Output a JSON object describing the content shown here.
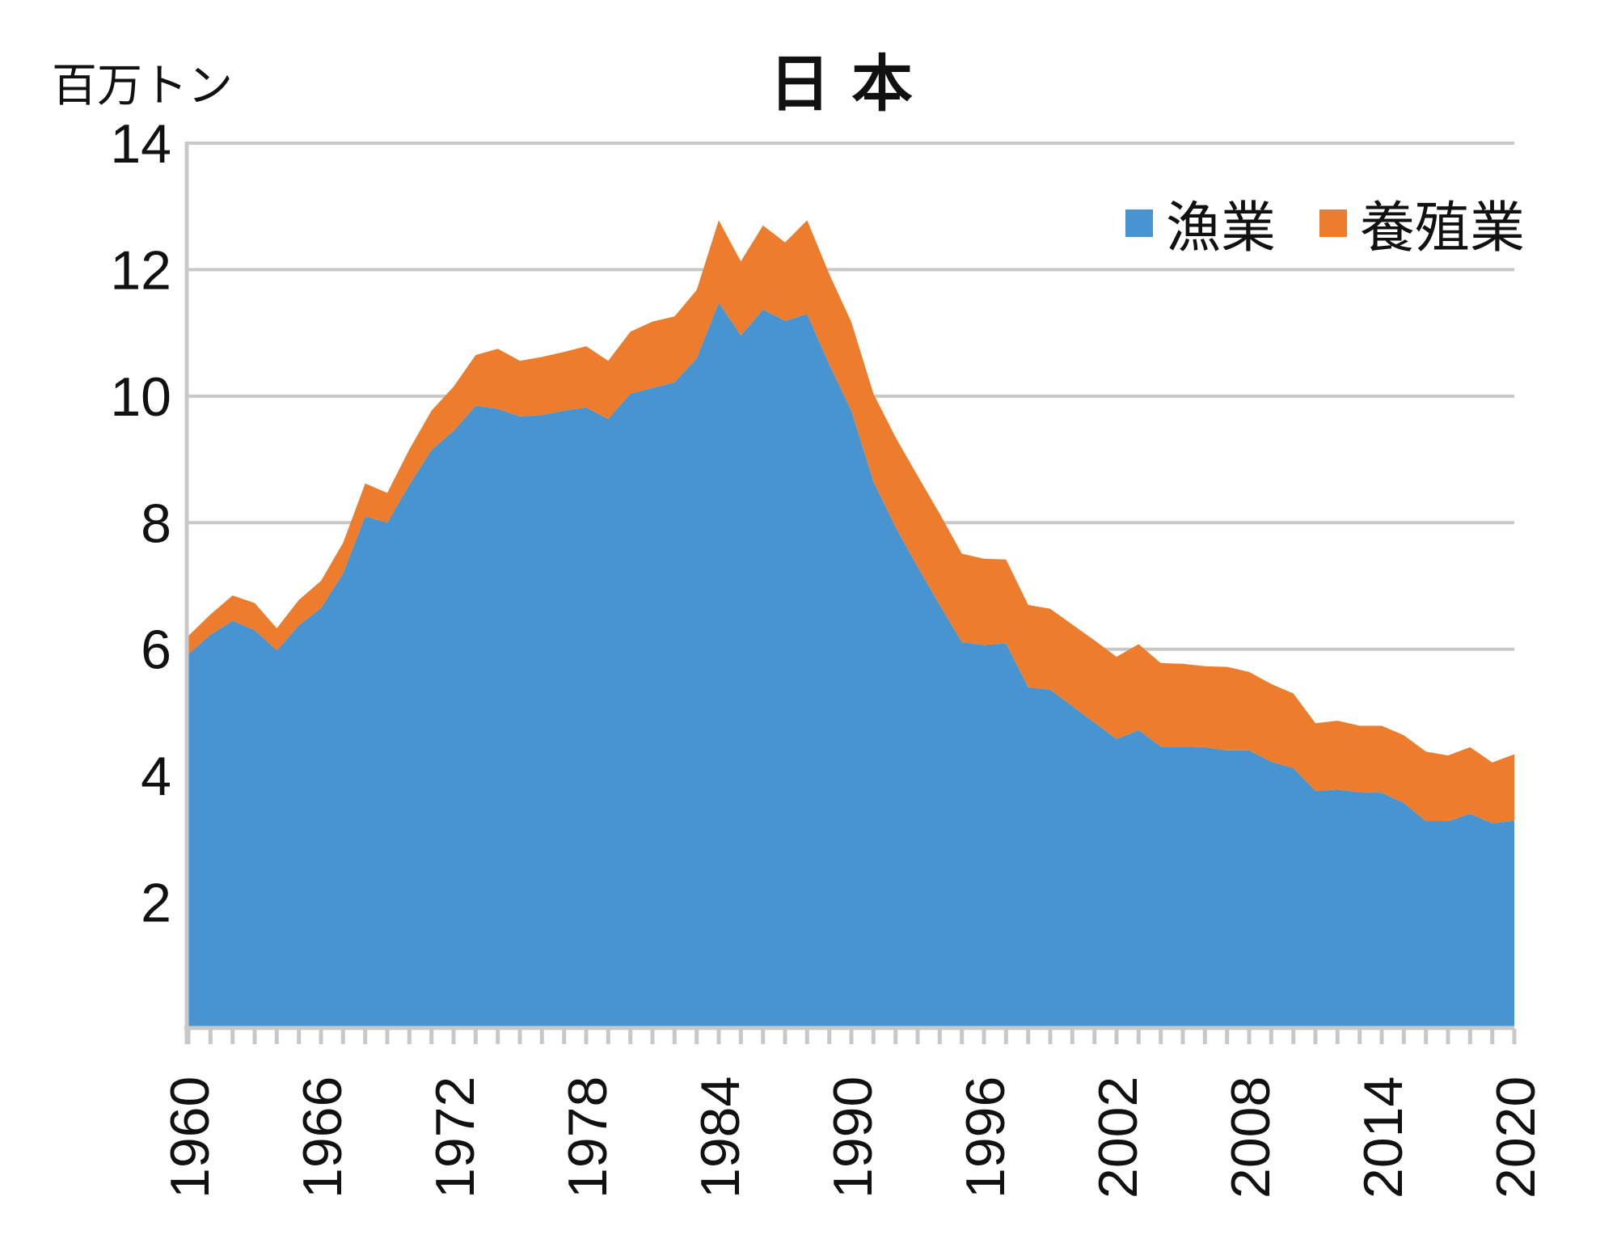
{
  "title": "日本",
  "unit_label": "百万トン",
  "legend_items": [
    {
      "label": "漁業",
      "color": "#4794D1"
    },
    {
      "label": "養殖業",
      "color": "#ED7D2C"
    }
  ],
  "colors": {
    "fishery_blue": "#4794D1",
    "aquaculture_orange": "#ED7D2C",
    "gridline_gray": "#C8C8C8",
    "text_black": "#111111",
    "background": "#FFFFFF"
  },
  "chart_data": {
    "type": "area",
    "stacked": true,
    "title": "日本",
    "ylabel": "百万トン",
    "xlabel": "",
    "ylim": [
      0,
      14
    ],
    "grid": true,
    "legend_position": "top-right",
    "y_ticks": [
      2,
      4,
      6,
      8,
      10,
      12,
      14
    ],
    "x_tick_labels": [
      1960,
      1966,
      1972,
      1978,
      1984,
      1990,
      1996,
      2002,
      2008,
      2014,
      2020
    ],
    "x": [
      1960,
      1961,
      1962,
      1963,
      1964,
      1965,
      1966,
      1967,
      1968,
      1969,
      1970,
      1971,
      1972,
      1973,
      1974,
      1975,
      1976,
      1977,
      1978,
      1979,
      1980,
      1981,
      1982,
      1983,
      1984,
      1985,
      1986,
      1987,
      1988,
      1989,
      1990,
      1991,
      1992,
      1993,
      1994,
      1995,
      1996,
      1997,
      1998,
      1999,
      2000,
      2001,
      2002,
      2003,
      2004,
      2005,
      2006,
      2007,
      2008,
      2009,
      2010,
      2011,
      2012,
      2013,
      2014,
      2015,
      2016,
      2017,
      2018,
      2019,
      2020
    ],
    "series": [
      {
        "name": "漁業",
        "color": "#4794D1",
        "values": [
          5.92,
          6.23,
          6.45,
          6.3,
          5.98,
          6.38,
          6.65,
          7.2,
          8.1,
          8.0,
          8.6,
          9.15,
          9.45,
          9.85,
          9.8,
          9.68,
          9.7,
          9.77,
          9.82,
          9.64,
          10.04,
          10.13,
          10.22,
          10.6,
          11.48,
          10.96,
          11.37,
          11.19,
          11.3,
          10.5,
          9.77,
          8.65,
          7.93,
          7.3,
          6.7,
          6.11,
          6.07,
          6.09,
          5.4,
          5.36,
          5.1,
          4.84,
          4.58,
          4.72,
          4.46,
          4.46,
          4.45,
          4.4,
          4.4,
          4.22,
          4.12,
          3.76,
          3.78,
          3.74,
          3.73,
          3.57,
          3.28,
          3.28,
          3.4,
          3.25,
          3.29
        ]
      },
      {
        "name": "養殖業",
        "color": "#ED7D2C",
        "values": [
          0.29,
          0.32,
          0.4,
          0.43,
          0.35,
          0.4,
          0.43,
          0.48,
          0.52,
          0.47,
          0.56,
          0.62,
          0.7,
          0.8,
          0.95,
          0.88,
          0.92,
          0.93,
          0.97,
          0.92,
          0.98,
          1.05,
          1.04,
          1.08,
          1.3,
          1.17,
          1.33,
          1.24,
          1.48,
          1.43,
          1.4,
          1.39,
          1.42,
          1.44,
          1.44,
          1.4,
          1.36,
          1.33,
          1.3,
          1.28,
          1.29,
          1.3,
          1.3,
          1.36,
          1.32,
          1.31,
          1.28,
          1.32,
          1.24,
          1.23,
          1.18,
          1.07,
          1.09,
          1.05,
          1.06,
          1.07,
          1.1,
          1.04,
          1.05,
          0.96,
          1.05
        ]
      }
    ]
  }
}
